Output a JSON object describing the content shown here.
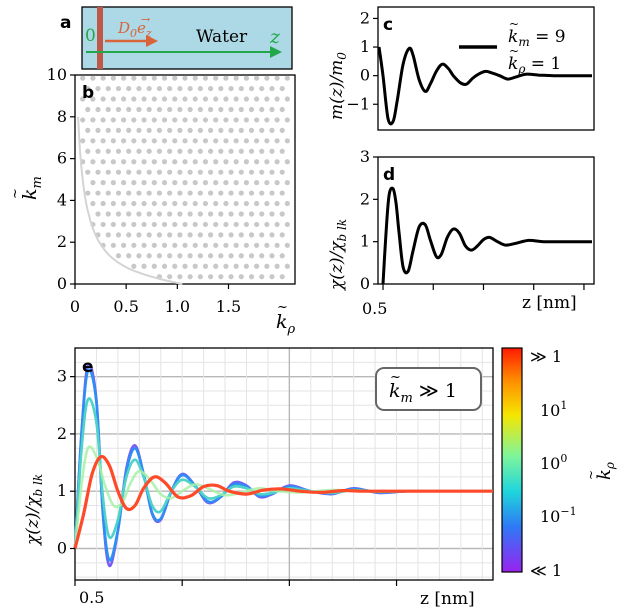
{
  "colors": {
    "water": "#add8e6",
    "wall": "#c0584a",
    "axis_arrow": "#22a84a",
    "vector_arrow": "#d9643a",
    "grid": "#cfcfcf",
    "dots": "#c8c8c8",
    "boundary": "#d4d4d4"
  },
  "panel_a": {
    "letter": "a",
    "origin_label": "0",
    "vector_label": "D",
    "vector_sub": "0",
    "vector_sym": "e",
    "vector_sym_sub": "z",
    "medium": "Water",
    "axis_label": "z"
  },
  "chart_data": [
    {
      "id": "b",
      "type": "scatter",
      "panel_letter": "b",
      "xlabel": "k",
      "xlabel_sub": "ρ",
      "ylabel": "k",
      "ylabel_sub": "m",
      "xlim": [
        0,
        2.15
      ],
      "ylim": [
        0,
        10
      ],
      "xticks": [
        0,
        0.5,
        1.0,
        1.5
      ],
      "xtick_labels": [
        "0",
        "0.5",
        "1.0",
        "1.5"
      ],
      "yticks": [
        0,
        2,
        4,
        6,
        8,
        10
      ],
      "ytick_labels": [
        "0",
        "2",
        "4",
        "6",
        "8",
        "10"
      ],
      "boundary_curve": {
        "x": [
          0.03,
          0.05,
          0.08,
          0.12,
          0.18,
          0.25,
          0.35,
          0.5,
          0.65,
          0.8,
          0.95,
          1.05
        ],
        "y": [
          8.0,
          6.3,
          4.8,
          3.6,
          2.6,
          1.9,
          1.3,
          0.8,
          0.5,
          0.28,
          0.1,
          0.0
        ]
      }
    },
    {
      "id": "c",
      "type": "line",
      "panel_letter": "c",
      "ylabel": "m(z)/m",
      "ylabel_sub": "0",
      "xlim": [
        0.45,
        2.6
      ],
      "ylim": [
        -1.9,
        2.4
      ],
      "yticks": [
        -1,
        0,
        1,
        2
      ],
      "ytick_labels": [
        "−1",
        "0",
        "1",
        "2"
      ],
      "legend_lines": [
        "k",
        "k"
      ],
      "legend_subs": [
        "m",
        "ρ"
      ],
      "legend_values": [
        "= 9",
        "= 1"
      ],
      "legend_position": "top-right",
      "series": [
        {
          "x": [
            0.46,
            0.5,
            0.55,
            0.6,
            0.64,
            0.7,
            0.76,
            0.8,
            0.86,
            0.92,
            0.97,
            1.03,
            1.09,
            1.15,
            1.2,
            1.27,
            1.33,
            1.39,
            1.45,
            1.52,
            1.58,
            1.66,
            1.74,
            1.82,
            1.92,
            2.05,
            2.2,
            2.4,
            2.58
          ],
          "y": [
            1.0,
            0.0,
            -1.5,
            -1.6,
            -0.9,
            0.4,
            0.95,
            0.7,
            -0.15,
            -0.55,
            -0.3,
            0.15,
            0.4,
            0.25,
            0.0,
            -0.25,
            -0.3,
            -0.1,
            0.05,
            0.15,
            0.1,
            0.0,
            -0.12,
            -0.05,
            0.05,
            0.02,
            0.0,
            0.0,
            0.0
          ]
        }
      ]
    },
    {
      "id": "d",
      "type": "line",
      "panel_letter": "d",
      "ylabel": "χ(z)/χ",
      "ylabel_sub": "b lk",
      "xlabel": "z [nm]",
      "xlim": [
        0.45,
        2.6
      ],
      "ylim": [
        0,
        3
      ],
      "xtick_labels": [
        "0.5"
      ],
      "yticks": [
        0,
        1,
        2,
        3
      ],
      "ytick_labels": [
        "0",
        "1",
        "2",
        "3"
      ],
      "series": [
        {
          "x": [
            0.5,
            0.53,
            0.56,
            0.6,
            0.63,
            0.66,
            0.7,
            0.75,
            0.8,
            0.86,
            0.92,
            0.97,
            1.03,
            1.08,
            1.14,
            1.2,
            1.26,
            1.32,
            1.38,
            1.44,
            1.5,
            1.56,
            1.64,
            1.72,
            1.82,
            1.95,
            2.1,
            2.3,
            2.58
          ],
          "y": [
            0.0,
            1.2,
            2.1,
            2.25,
            1.9,
            1.2,
            0.4,
            0.3,
            0.8,
            1.35,
            1.4,
            1.05,
            0.65,
            0.7,
            1.1,
            1.3,
            1.2,
            0.9,
            0.8,
            0.9,
            1.05,
            1.1,
            1.0,
            0.92,
            0.96,
            1.03,
            1.0,
            1.0,
            1.0
          ]
        }
      ]
    },
    {
      "id": "e",
      "type": "line",
      "panel_letter": "e",
      "ylabel": "χ(z)/χ",
      "ylabel_sub": "b lk",
      "xlabel": "z [nm]",
      "xlim": [
        0.5,
        2.45
      ],
      "ylim": [
        -0.55,
        3.5
      ],
      "xtick_labels": [
        "0.5"
      ],
      "yticks": [
        0,
        1,
        2,
        3
      ],
      "ytick_labels": [
        "0",
        "1",
        "2",
        "3"
      ],
      "grid": true,
      "annotation_main": "k",
      "annotation_sub": "m",
      "annotation_rel": "≫ 1",
      "colorbar": {
        "label": "k",
        "label_sub": "ρ",
        "tick_labels": [
          "≫ 1",
          "10",
          "10",
          "10",
          "≪ 1"
        ],
        "tick_exponents": [
          "",
          "1",
          "0",
          "−1",
          ""
        ],
        "colors": [
          "#ff2a00",
          "#ff8c00",
          "#f2e600",
          "#7ff58c",
          "#22d6d6",
          "#2d7ff5",
          "#5b3df5",
          "#9a2bf0"
        ]
      },
      "series": [
        {
          "color": "#7a5cf0",
          "x": [
            0.5,
            0.53,
            0.56,
            0.6,
            0.63,
            0.66,
            0.7,
            0.74,
            0.78,
            0.82,
            0.86,
            0.9,
            0.95,
            1.0,
            1.06,
            1.12,
            1.18,
            1.24,
            1.3,
            1.36,
            1.42,
            1.5,
            1.6,
            1.7,
            1.8,
            1.92,
            2.05,
            2.2,
            2.45
          ],
          "y": [
            0.0,
            2.0,
            3.2,
            2.6,
            0.6,
            -0.3,
            0.3,
            1.4,
            1.8,
            1.3,
            0.6,
            0.5,
            1.0,
            1.3,
            1.1,
            0.8,
            0.9,
            1.15,
            1.1,
            0.9,
            0.95,
            1.1,
            1.0,
            0.95,
            1.05,
            0.97,
            1.0,
            1.0,
            1.0
          ]
        },
        {
          "color": "#2d8ff5",
          "x": [
            0.5,
            0.53,
            0.56,
            0.6,
            0.63,
            0.66,
            0.7,
            0.74,
            0.78,
            0.82,
            0.86,
            0.9,
            0.95,
            1.0,
            1.06,
            1.12,
            1.18,
            1.24,
            1.3,
            1.36,
            1.42,
            1.5,
            1.6,
            1.7,
            1.8,
            1.92,
            2.05,
            2.2,
            2.45
          ],
          "y": [
            0.0,
            1.95,
            3.1,
            2.55,
            0.65,
            -0.2,
            0.32,
            1.35,
            1.75,
            1.3,
            0.62,
            0.52,
            1.0,
            1.28,
            1.1,
            0.82,
            0.9,
            1.12,
            1.08,
            0.92,
            0.96,
            1.08,
            1.0,
            0.96,
            1.04,
            0.98,
            1.0,
            1.0,
            1.0
          ]
        },
        {
          "color": "#4fd2c8",
          "x": [
            0.5,
            0.53,
            0.56,
            0.6,
            0.63,
            0.66,
            0.7,
            0.74,
            0.78,
            0.82,
            0.86,
            0.9,
            0.95,
            1.0,
            1.06,
            1.12,
            1.18,
            1.24,
            1.3,
            1.36,
            1.42,
            1.5,
            1.6,
            1.7,
            1.8,
            1.92,
            2.05,
            2.2,
            2.45
          ],
          "y": [
            0.0,
            1.7,
            2.6,
            2.2,
            0.9,
            0.2,
            0.5,
            1.25,
            1.55,
            1.25,
            0.75,
            0.65,
            1.0,
            1.2,
            1.08,
            0.88,
            0.93,
            1.08,
            1.05,
            0.95,
            0.97,
            1.05,
            1.0,
            0.97,
            1.02,
            0.99,
            1.0,
            1.0,
            1.0
          ]
        },
        {
          "color": "#a8f0a8",
          "x": [
            0.5,
            0.53,
            0.56,
            0.6,
            0.64,
            0.68,
            0.72,
            0.76,
            0.8,
            0.85,
            0.9,
            0.95,
            1.0,
            1.06,
            1.12,
            1.2,
            1.28,
            1.36,
            1.45,
            1.55,
            1.7,
            1.85,
            2.0,
            2.2,
            2.45
          ],
          "y": [
            0.0,
            1.1,
            1.75,
            1.6,
            1.1,
            0.75,
            0.8,
            1.15,
            1.35,
            1.2,
            0.95,
            0.88,
            1.0,
            1.12,
            1.05,
            0.93,
            0.98,
            1.05,
            1.0,
            0.98,
            1.02,
            1.0,
            1.0,
            1.0,
            1.0
          ]
        },
        {
          "color": "#ff4a2a",
          "x": [
            0.5,
            0.54,
            0.58,
            0.62,
            0.66,
            0.7,
            0.74,
            0.78,
            0.82,
            0.87,
            0.92,
            0.98,
            1.04,
            1.1,
            1.16,
            1.22,
            1.3,
            1.38,
            1.46,
            1.55,
            1.65,
            1.75,
            1.85,
            2.0,
            2.2,
            2.45
          ],
          "y": [
            0.0,
            0.6,
            1.3,
            1.6,
            1.45,
            1.0,
            0.7,
            0.75,
            1.05,
            1.25,
            1.15,
            0.9,
            0.92,
            1.08,
            1.1,
            1.0,
            0.95,
            1.02,
            1.04,
            1.0,
            0.98,
            1.01,
            1.0,
            1.0,
            1.0,
            1.0
          ]
        }
      ]
    }
  ]
}
